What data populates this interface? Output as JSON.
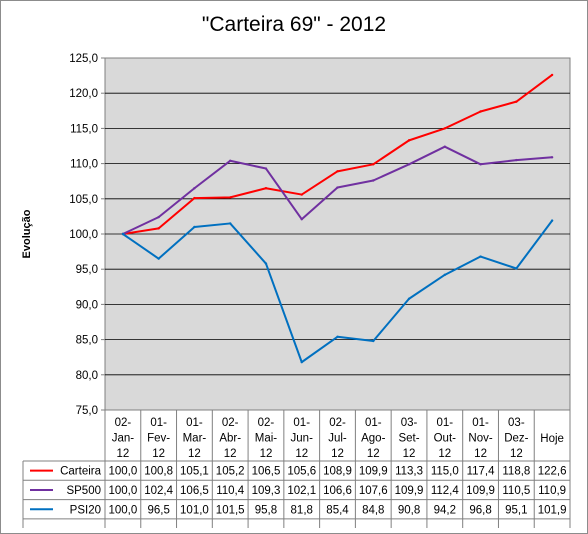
{
  "chart_data": {
    "type": "line",
    "title": "\"Carteira 69\" - 2012",
    "ylabel": "Evolução",
    "xlabel": "",
    "ylim": [
      75,
      125
    ],
    "y_ticks": [
      "75,0",
      "80,0",
      "85,0",
      "90,0",
      "95,0",
      "100,0",
      "105,0",
      "110,0",
      "115,0",
      "120,0",
      "125,0"
    ],
    "grid": true,
    "legend": "data-table",
    "categories": [
      [
        "02-",
        "Jan-",
        "12"
      ],
      [
        "01-",
        "Fev-",
        "12"
      ],
      [
        "01-",
        "Mar-",
        "12"
      ],
      [
        "02-",
        "Abr-",
        "12"
      ],
      [
        "02-",
        "Mai-",
        "12"
      ],
      [
        "01-",
        "Jun-",
        "12"
      ],
      [
        "02-",
        "Jul-",
        "12"
      ],
      [
        "01-",
        "Ago-",
        "12"
      ],
      [
        "03-",
        "Set-",
        "12"
      ],
      [
        "01-",
        "Out-",
        "12"
      ],
      [
        "01-",
        "Nov-",
        "12"
      ],
      [
        "03-",
        "Dez-",
        "12"
      ],
      [
        "Hoje"
      ]
    ],
    "series": [
      {
        "name": "Carteira",
        "color": "#ff0000",
        "values": [
          100.0,
          100.8,
          105.1,
          105.2,
          106.5,
          105.6,
          108.9,
          109.9,
          113.3,
          115.0,
          117.4,
          118.8,
          122.6
        ],
        "labels": [
          "100,0",
          "100,8",
          "105,1",
          "105,2",
          "106,5",
          "105,6",
          "108,9",
          "109,9",
          "113,3",
          "115,0",
          "117,4",
          "118,8",
          "122,6"
        ]
      },
      {
        "name": "SP500",
        "color": "#7030a0",
        "values": [
          100.0,
          102.4,
          106.5,
          110.4,
          109.3,
          102.1,
          106.6,
          107.6,
          109.9,
          112.4,
          109.9,
          110.5,
          110.9
        ],
        "labels": [
          "100,0",
          "102,4",
          "106,5",
          "110,4",
          "109,3",
          "102,1",
          "106,6",
          "107,6",
          "109,9",
          "112,4",
          "109,9",
          "110,5",
          "110,9"
        ]
      },
      {
        "name": "PSI20",
        "color": "#0070c0",
        "values": [
          100.0,
          96.5,
          101.0,
          101.5,
          95.8,
          81.8,
          85.4,
          84.8,
          90.8,
          94.2,
          96.8,
          95.1,
          101.9
        ],
        "labels": [
          "100,0",
          "96,5",
          "101,0",
          "101,5",
          "95,8",
          "81,8",
          "85,4",
          "84,8",
          "90,8",
          "94,2",
          "96,8",
          "95,1",
          "101,9"
        ]
      }
    ]
  }
}
